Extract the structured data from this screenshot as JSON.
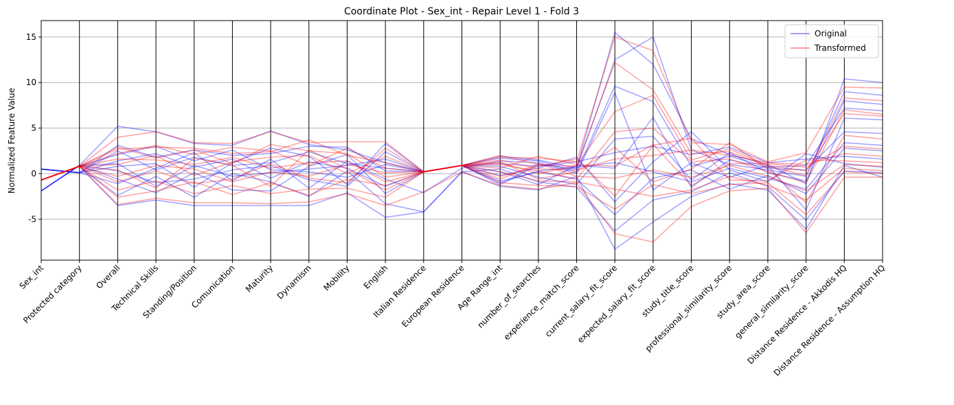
{
  "chart_data": {
    "type": "parallel_coordinates",
    "title": "Coordinate Plot - Sex_int - Repair Level 1 - Fold 3",
    "xlabel": "",
    "ylabel": "Normalized Feature Value",
    "ylim": [
      -9.5,
      16.8
    ],
    "yticks": [
      -5,
      0,
      5,
      10,
      15
    ],
    "grid": "horizontal",
    "legend_position": "top-right",
    "axes": [
      "Sex_int",
      "Protected category",
      "Overall",
      "Technical Skills",
      "Standing/Position",
      "Comunication",
      "Maturity",
      "Dynamism",
      "Mobility",
      "English",
      "Italian Residence",
      "European Residence",
      "Age Range_int",
      "number_of_searches",
      "experience_match_score",
      "current_salary_fit_score",
      "expected_salary_fit_score",
      "study_title_score",
      "professional_similarity_score",
      "study_area_score",
      "general_similarity_score",
      "Distance Residence - Akkodis HQ",
      "Distance Residence - Assumption HQ"
    ],
    "series": [
      {
        "name": "Original",
        "color": "#0000ff",
        "lines": [
          [
            -1.9,
            0.9,
            5.2,
            4.6,
            3.3,
            3.1,
            4.7,
            3.2,
            2.6,
            1.2,
            0.2,
            0.9,
            1.9,
            1.5,
            0.6,
            15.5,
            12.0,
            3.8,
            2.1,
            1.0,
            -1.1,
            10.4,
            10.0
          ],
          [
            0.5,
            0.1,
            2.5,
            0.4,
            1.8,
            0.9,
            1.2,
            2.4,
            1.1,
            0.6,
            0.2,
            0.9,
            -1.2,
            1.0,
            0.5,
            12.5,
            15.0,
            2.6,
            1.0,
            0.4,
            -0.3,
            9.0,
            8.6
          ],
          [
            -0.7,
            0.8,
            -3.5,
            -2.9,
            -3.5,
            -3.5,
            -3.5,
            -3.5,
            -2.1,
            -4.8,
            -4.2,
            0.2,
            -1.4,
            -1.8,
            -0.3,
            -8.3,
            -5.3,
            -2.5,
            -1.1,
            -1.8,
            -6.1,
            0.9,
            -0.4
          ],
          [
            0.5,
            0.1,
            1.4,
            2.2,
            0.7,
            1.6,
            -0.5,
            1.3,
            0.6,
            -1.4,
            0.2,
            0.9,
            0.8,
            -0.4,
            -1.2,
            3.8,
            4.1,
            -0.7,
            2.3,
            0.1,
            -0.8,
            8.0,
            7.6
          ],
          [
            -1.9,
            0.9,
            0.3,
            -1.0,
            -0.6,
            0.4,
            0.9,
            -0.7,
            -1.4,
            2.4,
            0.2,
            0.9,
            -0.2,
            0.6,
            1.8,
            -3.1,
            1.3,
            4.6,
            0.4,
            -0.9,
            2.2,
            1.1,
            0.7
          ],
          [
            0.5,
            0.1,
            -1.1,
            0.6,
            2.3,
            -0.8,
            1.6,
            -1.6,
            1.4,
            -0.6,
            -2.1,
            0.6,
            1.4,
            1.2,
            0.0,
            8.9,
            -1.8,
            1.2,
            -0.4,
            0.9,
            -4.0,
            6.1,
            5.9
          ],
          [
            -0.7,
            0.8,
            2.1,
            3.0,
            1.4,
            2.6,
            0.4,
            0.2,
            -0.4,
            1.0,
            0.2,
            0.9,
            0.2,
            -1.2,
            0.9,
            0.6,
            6.2,
            -1.5,
            1.5,
            0.6,
            0.4,
            4.6,
            4.4
          ],
          [
            -1.9,
            0.9,
            -0.6,
            -2.1,
            0.1,
            -1.8,
            -1.9,
            0.8,
            2.1,
            -2.2,
            0.2,
            0.9,
            -0.8,
            0.2,
            -0.6,
            -4.5,
            -0.5,
            0.4,
            -1.7,
            -0.2,
            -2.2,
            2.8,
            2.5
          ],
          [
            0.5,
            0.1,
            0.8,
            1.1,
            -1.5,
            1.2,
            2.8,
            1.9,
            -1.2,
            3.3,
            0.2,
            0.9,
            1.1,
            0.8,
            1.3,
            2.3,
            3.0,
            2.1,
            2.9,
            1.2,
            1.6,
            1.9,
            1.6
          ],
          [
            -0.7,
            0.8,
            -2.4,
            -0.3,
            -2.6,
            0.0,
            -0.9,
            -2.5,
            0.3,
            -3.3,
            -4.2,
            0.2,
            0.5,
            -0.9,
            -1.5,
            -6.3,
            -2.9,
            -2.0,
            0.1,
            -1.4,
            -5.1,
            0.3,
            0.1
          ],
          [
            0.5,
            0.1,
            3.1,
            1.8,
            2.6,
            2.0,
            2.2,
            3.0,
            2.9,
            0.3,
            0.2,
            0.9,
            1.7,
            1.4,
            0.2,
            9.6,
            7.9,
            0.8,
            1.9,
            0.7,
            0.9,
            7.2,
            6.9
          ],
          [
            -1.9,
            0.9,
            1.1,
            -1.4,
            0.9,
            -0.3,
            0.1,
            0.5,
            0.9,
            1.6,
            0.2,
            0.9,
            -1.0,
            0.3,
            0.7,
            1.2,
            0.2,
            -0.9,
            0.6,
            -0.5,
            -1.7,
            3.4,
            3.1
          ]
        ]
      },
      {
        "name": "Transformed",
        "color": "#ff0000",
        "lines": [
          [
            -0.7,
            0.8,
            4.0,
            4.6,
            3.4,
            3.3,
            4.6,
            3.4,
            3.5,
            3.5,
            0.2,
            0.9,
            1.8,
            1.7,
            1.3,
            15.0,
            13.5,
            3.4,
            3.2,
            1.3,
            2.3,
            9.5,
            9.4
          ],
          [
            -0.7,
            0.8,
            2.7,
            2.9,
            2.8,
            2.2,
            2.4,
            3.7,
            2.0,
            1.2,
            0.2,
            0.9,
            2.0,
            1.0,
            0.8,
            12.2,
            9.2,
            2.2,
            2.4,
            0.8,
            -0.2,
            8.3,
            8.0
          ],
          [
            -0.7,
            0.8,
            -3.4,
            -2.7,
            -3.2,
            -3.2,
            -3.3,
            -3.1,
            -2.2,
            -3.5,
            -2.0,
            0.2,
            -1.3,
            -1.7,
            -1.0,
            -6.6,
            -7.5,
            -3.6,
            -1.9,
            -1.6,
            -6.5,
            -0.4,
            -0.4
          ],
          [
            -0.7,
            0.8,
            1.6,
            1.5,
            1.0,
            1.8,
            0.6,
            1.2,
            1.4,
            -0.9,
            0.2,
            0.9,
            1.0,
            0.3,
            -0.6,
            4.6,
            5.0,
            1.3,
            1.6,
            0.2,
            -1.0,
            7.0,
            6.5
          ],
          [
            -0.7,
            0.8,
            -0.9,
            0.3,
            -1.1,
            -0.6,
            1.1,
            -0.5,
            -1.0,
            2.8,
            0.2,
            0.9,
            -0.3,
            0.8,
            1.6,
            -2.5,
            3.1,
            3.9,
            -0.7,
            -0.8,
            1.5,
            1.4,
            1.2
          ],
          [
            -0.7,
            0.8,
            0.4,
            -1.6,
            1.7,
            0.9,
            -1.4,
            2.6,
            0.5,
            -1.8,
            0.2,
            0.9,
            1.3,
            -0.6,
            0.2,
            2.9,
            -0.9,
            0.5,
            3.4,
            0.5,
            -3.2,
            4.2,
            3.8
          ],
          [
            -0.7,
            0.8,
            2.2,
            3.1,
            2.1,
            2.9,
            2.5,
            0.9,
            2.8,
            0.6,
            0.2,
            0.9,
            0.6,
            1.9,
            1.0,
            0.8,
            3.2,
            -1.3,
            1.1,
            1.1,
            0.7,
            3.0,
            2.7
          ],
          [
            -0.7,
            0.8,
            -1.8,
            -0.8,
            -2.2,
            -1.3,
            -2.2,
            -1.7,
            -1.6,
            -2.6,
            0.2,
            0.9,
            -1.0,
            -1.3,
            -1.4,
            -3.9,
            -1.2,
            -2.2,
            -1.2,
            -1.0,
            -4.5,
            0.2,
            0.0
          ],
          [
            -0.7,
            0.8,
            1.0,
            2.0,
            -0.2,
            1.3,
            1.8,
            2.0,
            0.0,
            1.9,
            0.2,
            0.9,
            1.5,
            0.5,
            0.4,
            1.6,
            2.0,
            2.6,
            2.0,
            1.2,
            1.0,
            2.2,
            1.9
          ],
          [
            -0.7,
            0.8,
            -0.3,
            0.9,
            0.5,
            -0.9,
            0.2,
            -0.3,
            1.0,
            0.1,
            0.2,
            0.9,
            -0.6,
            1.1,
            -0.3,
            -0.5,
            0.4,
            -0.4,
            0.9,
            -0.3,
            -1.9,
            1.0,
            0.8
          ],
          [
            -0.7,
            0.8,
            2.9,
            1.7,
            2.6,
            1.1,
            3.2,
            2.5,
            2.2,
            -0.4,
            0.2,
            0.9,
            1.2,
            0.0,
            0.9,
            6.8,
            8.6,
            1.5,
            2.7,
            0.9,
            0.3,
            6.6,
            6.3
          ],
          [
            -0.7,
            0.8,
            -2.6,
            -1.9,
            -0.9,
            -2.3,
            -1.0,
            -2.4,
            -0.6,
            -1.3,
            0.2,
            0.9,
            0.2,
            -0.8,
            -0.9,
            -1.7,
            -2.5,
            -1.8,
            -0.3,
            -1.3,
            -2.9,
            0.6,
            0.3
          ]
        ]
      }
    ]
  }
}
